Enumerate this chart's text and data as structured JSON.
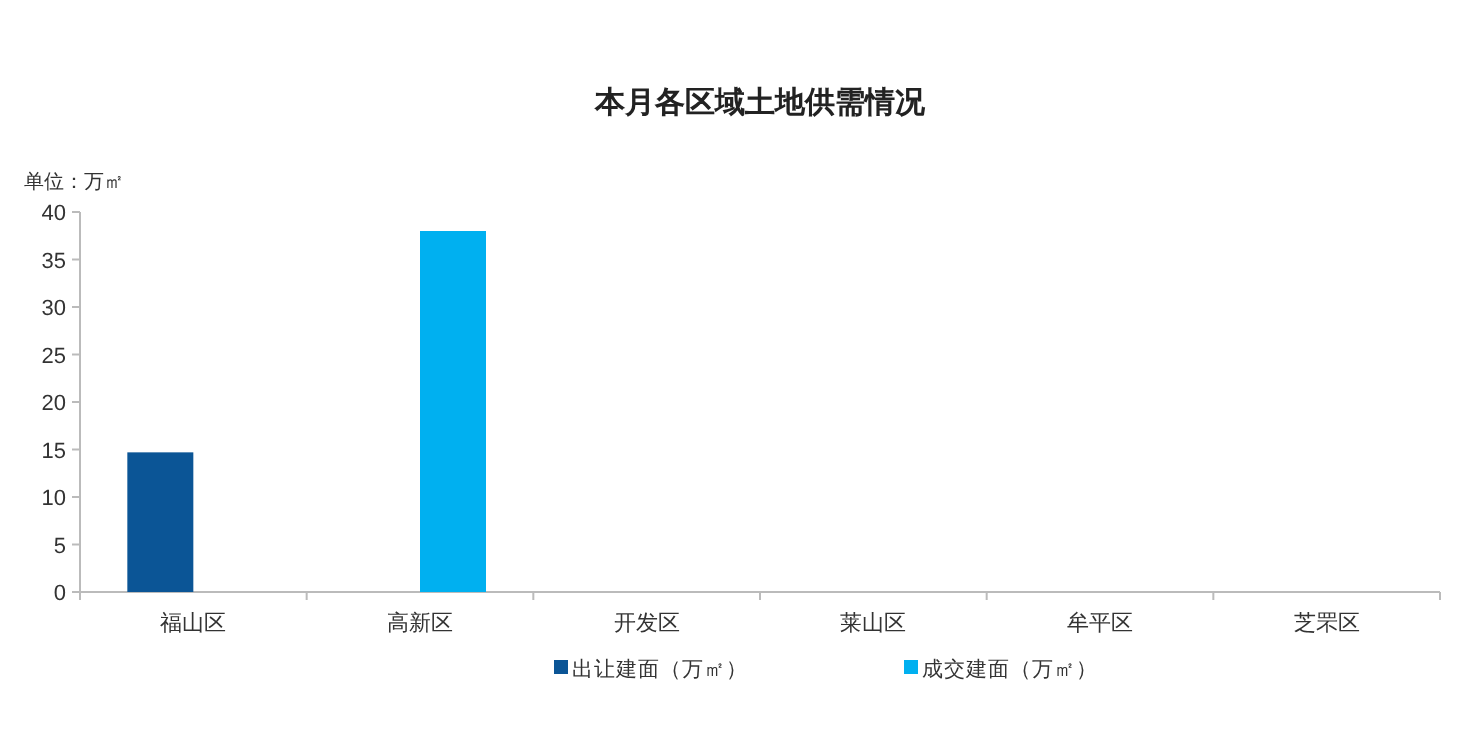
{
  "chart_data": {
    "type": "bar",
    "title": "本月各区域土地供需情况",
    "ylabel": "单位：万㎡",
    "categories": [
      "福山区",
      "高新区",
      "开发区",
      "莱山区",
      "牟平区",
      "芝罘区"
    ],
    "series": [
      {
        "name": "出让建面（万㎡）",
        "color": "#0b5596",
        "values": [
          14.7,
          null,
          null,
          null,
          null,
          null
        ]
      },
      {
        "name": "成交建面（万㎡）",
        "color": "#00b0f0",
        "values": [
          null,
          38.0,
          null,
          null,
          null,
          null
        ]
      }
    ],
    "ylim": [
      0,
      40
    ],
    "yticks": [
      0,
      5,
      10,
      15,
      20,
      25,
      30,
      35,
      40
    ],
    "grid": false,
    "legend": "bottom"
  }
}
